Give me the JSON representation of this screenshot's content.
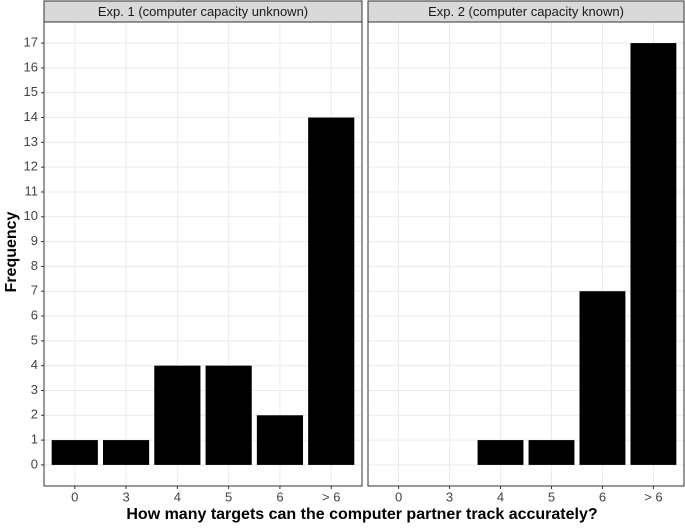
{
  "chart_data": [
    {
      "type": "bar",
      "title": "Exp. 1 (computer capacity unknown)",
      "xlabel": "How many targets can the computer partner track accurately?",
      "ylabel": "Frequency",
      "categories": [
        "0",
        "3",
        "4",
        "5",
        "6",
        "> 6"
      ],
      "values": [
        1,
        1,
        4,
        4,
        2,
        14
      ],
      "color": "#000000",
      "ylim": [
        -0.85,
        17.85
      ],
      "yticks": [
        0,
        1,
        2,
        3,
        4,
        5,
        6,
        7,
        8,
        9,
        10,
        11,
        12,
        13,
        14,
        15,
        16,
        17
      ],
      "grid": true
    },
    {
      "type": "bar",
      "title": "Exp. 2 (computer capacity known)",
      "categories": [
        "0",
        "3",
        "4",
        "5",
        "6",
        "> 6"
      ],
      "values": [
        0,
        0,
        1,
        1,
        7,
        17
      ],
      "color": "#000000",
      "ylim": [
        -0.85,
        17.85
      ],
      "yticks": [
        0,
        1,
        2,
        3,
        4,
        5,
        6,
        7,
        8,
        9,
        10,
        11,
        12,
        13,
        14,
        15,
        16,
        17
      ],
      "grid": true
    }
  ]
}
